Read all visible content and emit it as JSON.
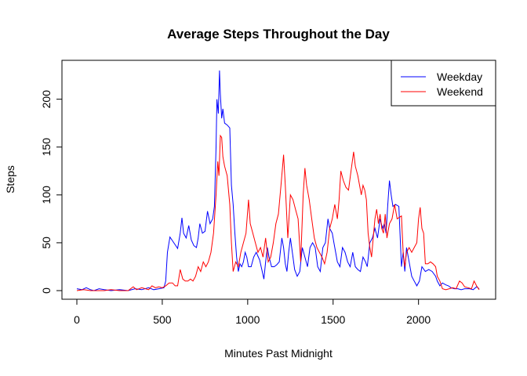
{
  "chart_data": {
    "type": "line",
    "title": "Average Steps Throughout the Day",
    "xlabel": "Minutes Past Midnight",
    "ylabel": "Steps",
    "xlim": [
      0,
      2355
    ],
    "ylim": [
      0,
      230
    ],
    "xticks": [
      0,
      500,
      1000,
      1500,
      2000
    ],
    "yticks": [
      0,
      50,
      100,
      150,
      200
    ],
    "grid": false,
    "legend_position": "top-right",
    "series": [
      {
        "name": "Weekday",
        "color": "#0000ff",
        "points": [
          [
            0,
            2
          ],
          [
            30,
            1
          ],
          [
            55,
            3
          ],
          [
            80,
            1
          ],
          [
            100,
            0
          ],
          [
            130,
            2
          ],
          [
            160,
            1
          ],
          [
            200,
            0
          ],
          [
            250,
            1
          ],
          [
            300,
            0
          ],
          [
            340,
            2
          ],
          [
            380,
            1
          ],
          [
            420,
            3
          ],
          [
            450,
            1
          ],
          [
            480,
            2
          ],
          [
            510,
            3
          ],
          [
            520,
            10
          ],
          [
            530,
            40
          ],
          [
            545,
            56
          ],
          [
            560,
            52
          ],
          [
            575,
            48
          ],
          [
            590,
            44
          ],
          [
            605,
            60
          ],
          [
            615,
            76
          ],
          [
            625,
            60
          ],
          [
            640,
            55
          ],
          [
            655,
            68
          ],
          [
            670,
            53
          ],
          [
            685,
            47
          ],
          [
            700,
            45
          ],
          [
            710,
            55
          ],
          [
            720,
            70
          ],
          [
            735,
            60
          ],
          [
            750,
            62
          ],
          [
            765,
            83
          ],
          [
            780,
            70
          ],
          [
            795,
            75
          ],
          [
            805,
            88
          ],
          [
            815,
            150
          ],
          [
            820,
            200
          ],
          [
            828,
            185
          ],
          [
            835,
            230
          ],
          [
            840,
            205
          ],
          [
            848,
            180
          ],
          [
            855,
            190
          ],
          [
            865,
            175
          ],
          [
            880,
            173
          ],
          [
            895,
            170
          ],
          [
            905,
            110
          ],
          [
            915,
            90
          ],
          [
            925,
            60
          ],
          [
            935,
            35
          ],
          [
            945,
            20
          ],
          [
            955,
            28
          ],
          [
            965,
            25
          ],
          [
            975,
            30
          ],
          [
            985,
            40
          ],
          [
            995,
            35
          ],
          [
            1005,
            25
          ],
          [
            1020,
            25
          ],
          [
            1035,
            35
          ],
          [
            1050,
            40
          ],
          [
            1060,
            36
          ],
          [
            1070,
            32
          ],
          [
            1085,
            20
          ],
          [
            1095,
            12
          ],
          [
            1105,
            30
          ],
          [
            1115,
            45
          ],
          [
            1125,
            35
          ],
          [
            1140,
            25
          ],
          [
            1155,
            25
          ],
          [
            1170,
            27
          ],
          [
            1185,
            30
          ],
          [
            1200,
            55
          ],
          [
            1210,
            45
          ],
          [
            1220,
            28
          ],
          [
            1230,
            20
          ],
          [
            1240,
            40
          ],
          [
            1250,
            55
          ],
          [
            1265,
            35
          ],
          [
            1275,
            22
          ],
          [
            1290,
            15
          ],
          [
            1305,
            20
          ],
          [
            1320,
            45
          ],
          [
            1335,
            35
          ],
          [
            1350,
            25
          ],
          [
            1365,
            45
          ],
          [
            1380,
            50
          ],
          [
            1395,
            45
          ],
          [
            1410,
            25
          ],
          [
            1425,
            20
          ],
          [
            1440,
            45
          ],
          [
            1455,
            50
          ],
          [
            1470,
            75
          ],
          [
            1480,
            65
          ],
          [
            1495,
            60
          ],
          [
            1505,
            50
          ],
          [
            1515,
            40
          ],
          [
            1525,
            30
          ],
          [
            1540,
            25
          ],
          [
            1555,
            45
          ],
          [
            1570,
            40
          ],
          [
            1585,
            30
          ],
          [
            1600,
            25
          ],
          [
            1615,
            40
          ],
          [
            1630,
            25
          ],
          [
            1645,
            22
          ],
          [
            1660,
            20
          ],
          [
            1675,
            35
          ],
          [
            1690,
            30
          ],
          [
            1700,
            25
          ],
          [
            1715,
            50
          ],
          [
            1730,
            55
          ],
          [
            1745,
            65
          ],
          [
            1760,
            55
          ],
          [
            1775,
            75
          ],
          [
            1790,
            65
          ],
          [
            1800,
            70
          ],
          [
            1810,
            60
          ],
          [
            1820,
            90
          ],
          [
            1830,
            115
          ],
          [
            1840,
            100
          ],
          [
            1850,
            88
          ],
          [
            1865,
            90
          ],
          [
            1885,
            88
          ],
          [
            1900,
            25
          ],
          [
            1910,
            40
          ],
          [
            1920,
            20
          ],
          [
            1930,
            45
          ],
          [
            1945,
            30
          ],
          [
            1960,
            15
          ],
          [
            1975,
            10
          ],
          [
            1990,
            5
          ],
          [
            2005,
            10
          ],
          [
            2020,
            25
          ],
          [
            2040,
            20
          ],
          [
            2060,
            22
          ],
          [
            2080,
            20
          ],
          [
            2100,
            15
          ],
          [
            2110,
            10
          ],
          [
            2125,
            5
          ],
          [
            2140,
            8
          ],
          [
            2160,
            6
          ],
          [
            2175,
            5
          ],
          [
            2190,
            3
          ],
          [
            2210,
            2
          ],
          [
            2230,
            2
          ],
          [
            2250,
            1
          ],
          [
            2270,
            2
          ],
          [
            2300,
            2
          ],
          [
            2320,
            1
          ],
          [
            2340,
            4
          ],
          [
            2355,
            2
          ]
        ]
      },
      {
        "name": "Weekend",
        "color": "#ff0000",
        "points": [
          [
            0,
            0
          ],
          [
            40,
            1
          ],
          [
            80,
            0
          ],
          [
            120,
            0
          ],
          [
            160,
            0
          ],
          [
            200,
            1
          ],
          [
            250,
            0
          ],
          [
            300,
            0
          ],
          [
            330,
            4
          ],
          [
            350,
            1
          ],
          [
            380,
            3
          ],
          [
            420,
            1
          ],
          [
            440,
            5
          ],
          [
            460,
            3
          ],
          [
            480,
            4
          ],
          [
            500,
            3
          ],
          [
            520,
            5
          ],
          [
            540,
            8
          ],
          [
            560,
            8
          ],
          [
            575,
            5
          ],
          [
            590,
            5
          ],
          [
            605,
            22
          ],
          [
            620,
            12
          ],
          [
            635,
            10
          ],
          [
            650,
            10
          ],
          [
            665,
            12
          ],
          [
            680,
            10
          ],
          [
            695,
            15
          ],
          [
            710,
            25
          ],
          [
            725,
            20
          ],
          [
            740,
            30
          ],
          [
            755,
            25
          ],
          [
            770,
            30
          ],
          [
            785,
            40
          ],
          [
            800,
            60
          ],
          [
            815,
            100
          ],
          [
            825,
            135
          ],
          [
            832,
            120
          ],
          [
            840,
            162
          ],
          [
            848,
            160
          ],
          [
            855,
            140
          ],
          [
            865,
            130
          ],
          [
            880,
            120
          ],
          [
            895,
            90
          ],
          [
            905,
            50
          ],
          [
            915,
            20
          ],
          [
            930,
            30
          ],
          [
            945,
            25
          ],
          [
            960,
            40
          ],
          [
            975,
            50
          ],
          [
            990,
            60
          ],
          [
            1005,
            95
          ],
          [
            1015,
            70
          ],
          [
            1030,
            60
          ],
          [
            1045,
            50
          ],
          [
            1060,
            40
          ],
          [
            1075,
            45
          ],
          [
            1090,
            35
          ],
          [
            1105,
            55
          ],
          [
            1120,
            30
          ],
          [
            1135,
            35
          ],
          [
            1150,
            50
          ],
          [
            1165,
            70
          ],
          [
            1180,
            80
          ],
          [
            1195,
            110
          ],
          [
            1210,
            142
          ],
          [
            1220,
            110
          ],
          [
            1235,
            55
          ],
          [
            1250,
            100
          ],
          [
            1265,
            95
          ],
          [
            1280,
            85
          ],
          [
            1295,
            75
          ],
          [
            1310,
            30
          ],
          [
            1325,
            100
          ],
          [
            1335,
            128
          ],
          [
            1345,
            110
          ],
          [
            1360,
            95
          ],
          [
            1375,
            75
          ],
          [
            1390,
            55
          ],
          [
            1405,
            45
          ],
          [
            1420,
            40
          ],
          [
            1435,
            35
          ],
          [
            1450,
            28
          ],
          [
            1465,
            40
          ],
          [
            1480,
            65
          ],
          [
            1495,
            75
          ],
          [
            1510,
            90
          ],
          [
            1525,
            75
          ],
          [
            1535,
            95
          ],
          [
            1545,
            125
          ],
          [
            1560,
            115
          ],
          [
            1575,
            108
          ],
          [
            1590,
            105
          ],
          [
            1605,
            125
          ],
          [
            1620,
            145
          ],
          [
            1630,
            130
          ],
          [
            1645,
            120
          ],
          [
            1655,
            110
          ],
          [
            1665,
            100
          ],
          [
            1675,
            110
          ],
          [
            1685,
            105
          ],
          [
            1695,
            95
          ],
          [
            1705,
            60
          ],
          [
            1715,
            45
          ],
          [
            1725,
            35
          ],
          [
            1735,
            55
          ],
          [
            1745,
            75
          ],
          [
            1755,
            85
          ],
          [
            1765,
            70
          ],
          [
            1775,
            80
          ],
          [
            1785,
            65
          ],
          [
            1795,
            60
          ],
          [
            1805,
            80
          ],
          [
            1815,
            55
          ],
          [
            1830,
            70
          ],
          [
            1845,
            75
          ],
          [
            1860,
            90
          ],
          [
            1875,
            75
          ],
          [
            1900,
            78
          ],
          [
            1910,
            40
          ],
          [
            1920,
            25
          ],
          [
            1930,
            40
          ],
          [
            1945,
            45
          ],
          [
            1960,
            40
          ],
          [
            1975,
            45
          ],
          [
            1990,
            50
          ],
          [
            2000,
            75
          ],
          [
            2010,
            87
          ],
          [
            2020,
            65
          ],
          [
            2030,
            60
          ],
          [
            2040,
            28
          ],
          [
            2055,
            28
          ],
          [
            2070,
            30
          ],
          [
            2085,
            28
          ],
          [
            2100,
            25
          ],
          [
            2110,
            15
          ],
          [
            2125,
            10
          ],
          [
            2140,
            2
          ],
          [
            2160,
            1
          ],
          [
            2180,
            2
          ],
          [
            2200,
            3
          ],
          [
            2220,
            2
          ],
          [
            2240,
            10
          ],
          [
            2255,
            8
          ],
          [
            2270,
            4
          ],
          [
            2290,
            3
          ],
          [
            2310,
            2
          ],
          [
            2325,
            10
          ],
          [
            2340,
            5
          ],
          [
            2355,
            1
          ]
        ]
      }
    ]
  }
}
